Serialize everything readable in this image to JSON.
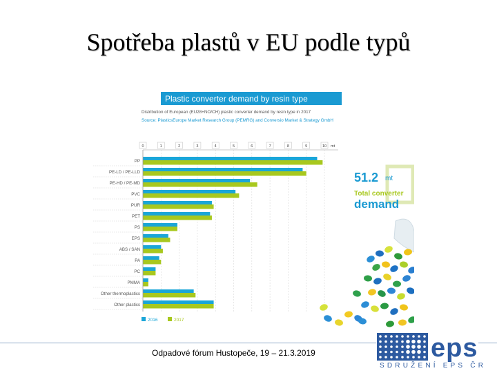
{
  "slide": {
    "title": "Spotřeba plastů v EU podle typů",
    "footer": "Odpadové fórum Hustopeče, 19 – 21.3.2019"
  },
  "logo": {
    "word": "eps",
    "subtitle": "SDRUŽENÍ EPS ČR"
  },
  "chart_data": {
    "type": "bar",
    "orientation": "horizontal",
    "title": "Plastic converter demand by resin type",
    "subtitle": "Distribution of European (EU28+NO/CH) plastic converter demand by resin type in 2017",
    "source": "Source: PlasticsEurope Market Research Group (PEMRG) and Conversio Market & Strategy GmbH",
    "unit": "mt",
    "xlim": [
      0,
      10
    ],
    "xticks": [
      "0",
      "1",
      "2",
      "3",
      "4",
      "5",
      "6",
      "7",
      "8",
      "9",
      "10"
    ],
    "categories": [
      "PP",
      "PE-LD / PE-LLD",
      "PE-HD / PE-MD",
      "PVC",
      "PUR",
      "PET",
      "PS",
      "EPS",
      "ABS / SAN",
      "PA",
      "PC",
      "PMMA",
      "Other thermoplastics",
      "Other plastics"
    ],
    "series": [
      {
        "name": "2016",
        "color": "#1aa6d8",
        "values": [
          9.6,
          8.8,
          5.9,
          5.1,
          3.8,
          3.7,
          1.9,
          1.4,
          1.0,
          0.9,
          0.7,
          0.3,
          2.8,
          3.9
        ]
      },
      {
        "name": "2017",
        "color": "#a8c81e",
        "values": [
          9.9,
          9.0,
          6.3,
          5.3,
          3.9,
          3.8,
          1.9,
          1.5,
          1.1,
          1.0,
          0.7,
          0.3,
          2.9,
          3.9
        ]
      }
    ],
    "highlight": {
      "value": "51.2",
      "unit": "mt",
      "label_line1": "Total converter",
      "label_line2": "demand"
    },
    "grid": true,
    "legend": "bottom-left"
  }
}
